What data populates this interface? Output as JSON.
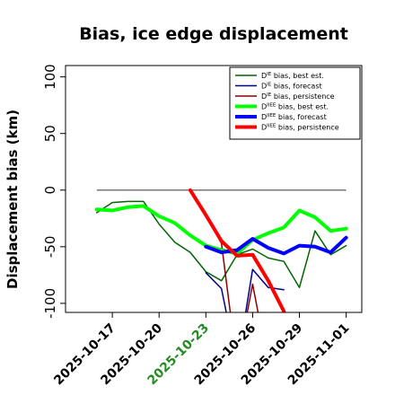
{
  "chart_data": {
    "type": "line",
    "title": "Bias, ice edge displacement",
    "xlabel": "",
    "ylabel": "Displacement bias (km)",
    "ylim": [
      -108,
      110
    ],
    "xlim": [
      "2025-10-14",
      "2025-11-02"
    ],
    "grid": false,
    "legend_position": "top-right",
    "x_ticks": [
      "2025-10-17",
      "2025-10-20",
      "2025-10-23",
      "2025-10-26",
      "2025-10-29",
      "2025-11-01"
    ],
    "x_tick_colors": [
      "#000000",
      "#000000",
      "#228B22",
      "#000000",
      "#000000",
      "#000000"
    ],
    "y_ticks": [
      -100,
      -50,
      0,
      50,
      100
    ],
    "reference_line": {
      "value": 0,
      "from": "2025-10-16",
      "to": "2025-11-01",
      "color": "#777777"
    },
    "series": [
      {
        "name": "D^IE bias, best est.",
        "color": "#006400",
        "width": 1.5,
        "x": [
          "2025-10-16",
          "2025-10-17",
          "2025-10-18",
          "2025-10-19",
          "2025-10-20",
          "2025-10-21",
          "2025-10-22",
          "2025-10-23",
          "2025-10-24",
          "2025-10-25",
          "2025-10-26",
          "2025-10-27",
          "2025-10-28",
          "2025-10-29",
          "2025-10-30",
          "2025-10-31",
          "2025-11-01"
        ],
        "y": [
          -20,
          -11,
          -10,
          -10,
          -30,
          -46,
          -55,
          -72,
          -80,
          -57,
          -52,
          -60,
          -63,
          -86,
          -36,
          -57,
          -49
        ]
      },
      {
        "name": "D^IE bias, forecast",
        "color": "#00008B",
        "width": 1.5,
        "x": [
          "2025-10-23",
          "2025-10-24",
          "2025-10-25",
          "2025-10-26",
          "2025-10-27",
          "2025-10-28"
        ],
        "y": [
          -73,
          -87,
          -155,
          -70,
          -86,
          -88
        ]
      },
      {
        "name": "D^IE bias, persistence",
        "color": "#8B0000",
        "width": 1.5,
        "x": [
          "2025-10-23",
          "2025-10-24",
          "2025-10-25",
          "2025-10-26",
          "2025-10-27"
        ],
        "y": [
          -22,
          -47,
          -155,
          -83,
          -155
        ]
      },
      {
        "name": "D^IIEE bias, best est.",
        "color": "#00FF00",
        "width": 4,
        "x": [
          "2025-10-16",
          "2025-10-17",
          "2025-10-18",
          "2025-10-19",
          "2025-10-20",
          "2025-10-21",
          "2025-10-22",
          "2025-10-23",
          "2025-10-24",
          "2025-10-25",
          "2025-10-26",
          "2025-10-27",
          "2025-10-28",
          "2025-10-29",
          "2025-10-30",
          "2025-10-31",
          "2025-11-01"
        ],
        "y": [
          -17,
          -18,
          -15,
          -14,
          -23,
          -29,
          -40,
          -49,
          -53,
          -56,
          -44,
          -38,
          -33,
          -18,
          -24,
          -36,
          -34
        ]
      },
      {
        "name": "D^IIEE bias, forecast",
        "color": "#0000FF",
        "width": 4,
        "x": [
          "2025-10-23",
          "2025-10-24",
          "2025-10-25",
          "2025-10-26",
          "2025-10-27",
          "2025-10-28",
          "2025-10-29",
          "2025-10-30",
          "2025-10-31",
          "2025-11-01"
        ],
        "y": [
          -50,
          -55,
          -53,
          -43,
          -51,
          -56,
          -49,
          -50,
          -55,
          -42
        ]
      },
      {
        "name": "D^IIEE bias, persistence",
        "color": "#FF0000",
        "width": 4,
        "x": [
          "2025-10-22",
          "2025-10-23",
          "2025-10-24",
          "2025-10-25",
          "2025-10-26",
          "2025-10-27",
          "2025-10-28"
        ],
        "y": [
          0,
          -22,
          -45,
          -58,
          -57,
          -80,
          -107
        ]
      }
    ],
    "legend_entries": [
      {
        "prefix": "D",
        "sup": "IE",
        "suffix": " bias, best est."
      },
      {
        "prefix": "D",
        "sup": "IE",
        "suffix": " bias, forecast"
      },
      {
        "prefix": "D",
        "sup": "IE",
        "suffix": " bias, persistence"
      },
      {
        "prefix": "D",
        "sup": "IIEE",
        "suffix": " bias, best est."
      },
      {
        "prefix": "D",
        "sup": "IIEE",
        "suffix": " bias, forecast"
      },
      {
        "prefix": "D",
        "sup": "IIEE",
        "suffix": " bias, persistence"
      }
    ]
  }
}
